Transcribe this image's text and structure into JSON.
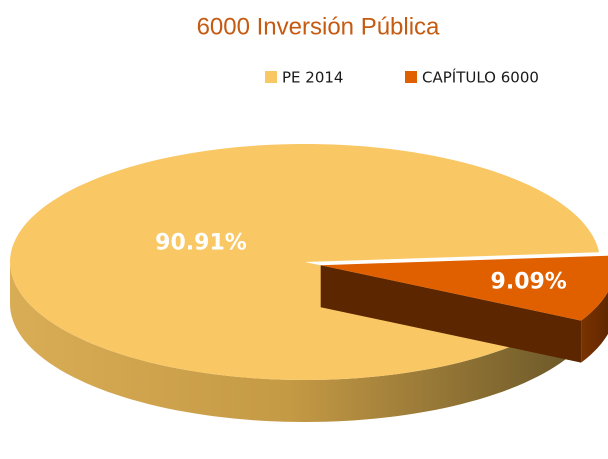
{
  "chart_data": {
    "type": "pie",
    "title": "6000 Inversión Pública",
    "categories": [
      "PE 2014",
      "CAPÍTULO 6000"
    ],
    "values": [
      90.91,
      9.09
    ],
    "value_labels": [
      "90.91%",
      "9.09%"
    ],
    "colors": [
      "#f9c764",
      "#e06000"
    ],
    "legend": "top"
  }
}
